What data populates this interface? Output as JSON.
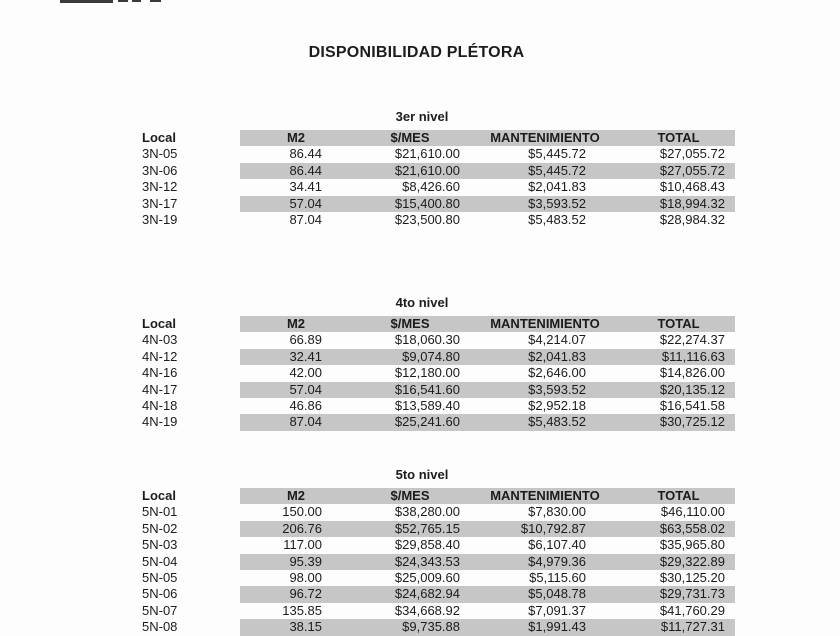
{
  "page": {
    "title": "DISPONIBILIDAD PLÉTORA"
  },
  "table": {
    "columns": [
      "Local",
      "M2",
      "$/MES",
      "MANTENIMIENTO",
      "TOTAL"
    ]
  },
  "sections": [
    {
      "title": "3er nivel",
      "rows": [
        {
          "local": "3N-05",
          "m2": "86.44",
          "mes": "$21,610.00",
          "mant": "$5,445.72",
          "total": "$27,055.72"
        },
        {
          "local": "3N-06",
          "m2": "86.44",
          "mes": "$21,610.00",
          "mant": "$5,445.72",
          "total": "$27,055.72"
        },
        {
          "local": "3N-12",
          "m2": "34.41",
          "mes": "$8,426.60",
          "mant": "$2,041.83",
          "total": "$10,468.43"
        },
        {
          "local": "3N-17",
          "m2": "57.04",
          "mes": "$15,400.80",
          "mant": "$3,593.52",
          "total": "$18,994.32"
        },
        {
          "local": "3N-19",
          "m2": "87.04",
          "mes": "$23,500.80",
          "mant": "$5,483.52",
          "total": "$28,984.32"
        }
      ]
    },
    {
      "title": "4to nivel",
      "rows": [
        {
          "local": "4N-03",
          "m2": "66.89",
          "mes": "$18,060.30",
          "mant": "$4,214.07",
          "total": "$22,274.37"
        },
        {
          "local": "4N-12",
          "m2": "32.41",
          "mes": "$9,074.80",
          "mant": "$2,041.83",
          "total": "$11,116.63"
        },
        {
          "local": "4N-16",
          "m2": "42.00",
          "mes": "$12,180.00",
          "mant": "$2,646.00",
          "total": "$14,826.00"
        },
        {
          "local": "4N-17",
          "m2": "57.04",
          "mes": "$16,541.60",
          "mant": "$3,593.52",
          "total": "$20,135.12"
        },
        {
          "local": "4N-18",
          "m2": "46.86",
          "mes": "$13,589.40",
          "mant": "$2,952.18",
          "total": "$16,541.58"
        },
        {
          "local": "4N-19",
          "m2": "87.04",
          "mes": "$25,241.60",
          "mant": "$5,483.52",
          "total": "$30,725.12"
        }
      ]
    },
    {
      "title": "5to nivel",
      "rows": [
        {
          "local": "5N-01",
          "m2": "150.00",
          "mes": "$38,280.00",
          "mant": "$7,830.00",
          "total": "$46,110.00"
        },
        {
          "local": "5N-02",
          "m2": "206.76",
          "mes": "$52,765.15",
          "mant": "$10,792.87",
          "total": "$63,558.02"
        },
        {
          "local": "5N-03",
          "m2": "117.00",
          "mes": "$29,858.40",
          "mant": "$6,107.40",
          "total": "$35,965.80"
        },
        {
          "local": "5N-04",
          "m2": "95.39",
          "mes": "$24,343.53",
          "mant": "$4,979.36",
          "total": "$29,322.89"
        },
        {
          "local": "5N-05",
          "m2": "98.00",
          "mes": "$25,009.60",
          "mant": "$5,115.60",
          "total": "$30,125.20"
        },
        {
          "local": "5N-06",
          "m2": "96.72",
          "mes": "$24,682.94",
          "mant": "$5,048.78",
          "total": "$29,731.73"
        },
        {
          "local": "5N-07",
          "m2": "135.85",
          "mes": "$34,668.92",
          "mant": "$7,091.37",
          "total": "$41,760.29"
        },
        {
          "local": "5N-08",
          "m2": "38.15",
          "mes": "$9,735.88",
          "mant": "$1,991.43",
          "total": "$11,727.31"
        }
      ]
    }
  ],
  "colors": {
    "stripe": "#c6c6c6",
    "text": "#1c1c1c",
    "page_background": "#fdfdfd"
  }
}
